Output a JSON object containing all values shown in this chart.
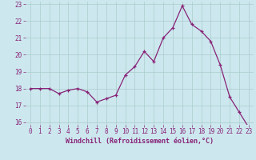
{
  "x": [
    0,
    1,
    2,
    3,
    4,
    5,
    6,
    7,
    8,
    9,
    10,
    11,
    12,
    13,
    14,
    15,
    16,
    17,
    18,
    19,
    20,
    21,
    22,
    23
  ],
  "y": [
    18.0,
    18.0,
    18.0,
    17.7,
    17.9,
    18.0,
    17.8,
    17.2,
    17.4,
    17.6,
    18.8,
    19.3,
    20.2,
    19.6,
    21.0,
    21.6,
    22.9,
    21.8,
    21.4,
    20.8,
    19.4,
    17.5,
    16.6,
    15.7
  ],
  "line_color": "#882277",
  "marker": "+",
  "marker_size": 3,
  "linewidth": 0.9,
  "background_color": "#cce8ee",
  "grid_color": "#aacccc",
  "xlabel": "Windchill (Refroidissement éolien,°C)",
  "xlabel_color": "#882277",
  "tick_color": "#882277",
  "label_fontsize": 5.5,
  "xlabel_fontsize": 6.0,
  "ylim": [
    16,
    23
  ],
  "xlim": [
    -0.5,
    23.5
  ],
  "yticks": [
    16,
    17,
    18,
    19,
    20,
    21,
    22,
    23
  ],
  "xticks": [
    0,
    1,
    2,
    3,
    4,
    5,
    6,
    7,
    8,
    9,
    10,
    11,
    12,
    13,
    14,
    15,
    16,
    17,
    18,
    19,
    20,
    21,
    22,
    23
  ]
}
